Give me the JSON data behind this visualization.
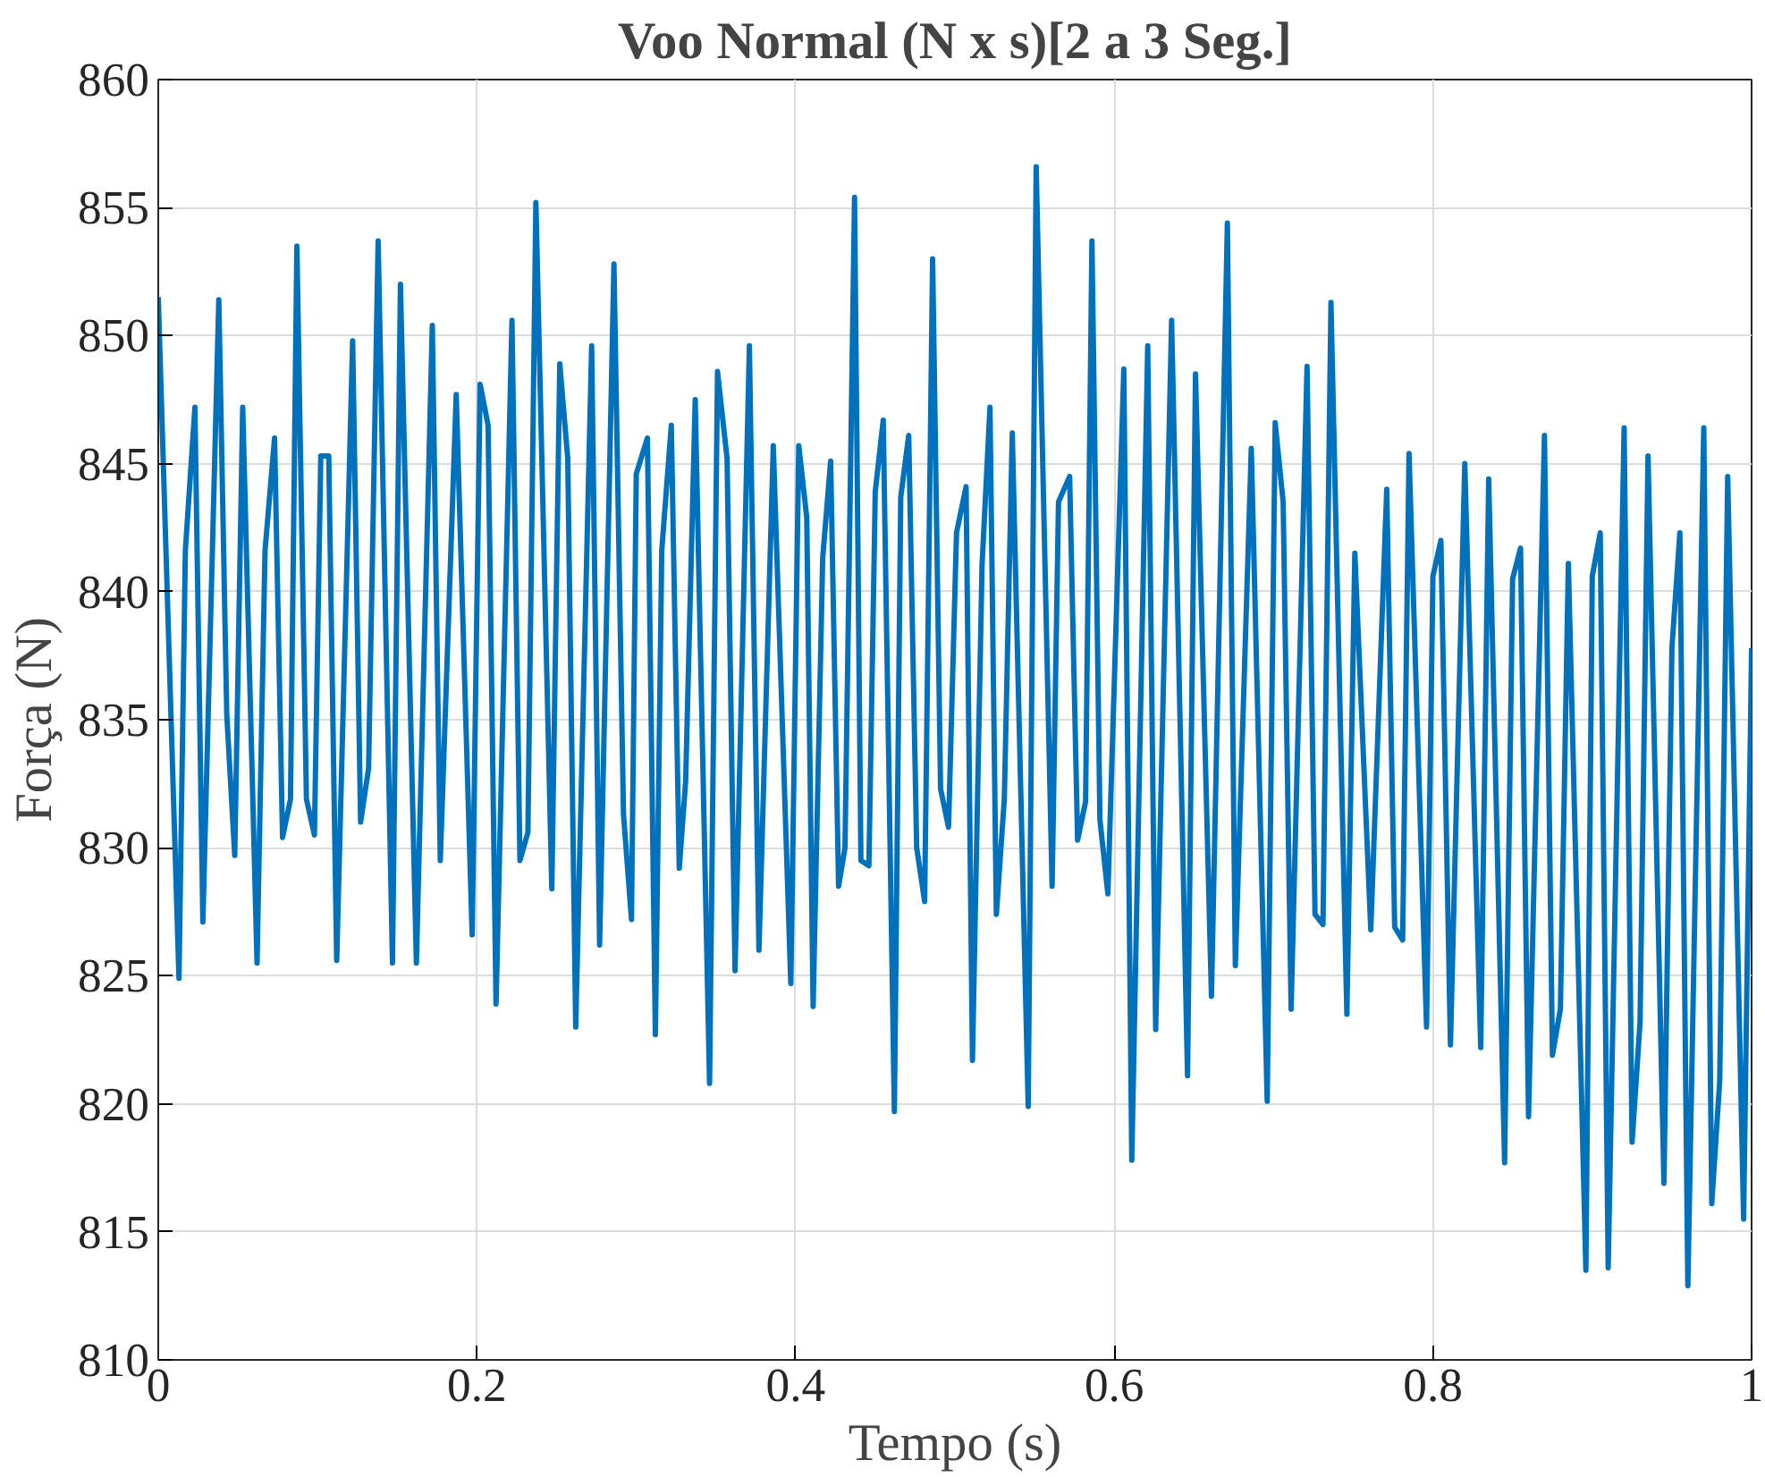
{
  "chart_data": {
    "type": "line",
    "title": "Voo Normal (N x s)[2 a 3 Seg.]",
    "xlabel": "Tempo (s)",
    "ylabel": "Força (N)",
    "xlim": [
      0,
      1
    ],
    "ylim": [
      810,
      860
    ],
    "xticks": [
      0,
      0.2,
      0.4,
      0.6,
      0.8,
      1
    ],
    "yticks": [
      810,
      815,
      820,
      825,
      830,
      835,
      840,
      845,
      850,
      855,
      860
    ],
    "grid": true,
    "line_style": "solid",
    "series": [
      {
        "color": "#0072bd",
        "x": [
          0,
          0.013,
          0.017,
          0.023,
          0.028,
          0.038,
          0.043,
          0.048,
          0.053,
          0.062,
          0.067,
          0.073,
          0.078,
          0.083,
          0.087,
          0.093,
          0.098,
          0.102,
          0.107,
          0.112,
          0.122,
          0.127,
          0.132,
          0.138,
          0.147,
          0.152,
          0.162,
          0.172,
          0.177,
          0.187,
          0.197,
          0.202,
          0.207,
          0.212,
          0.222,
          0.227,
          0.232,
          0.237,
          0.247,
          0.252,
          0.257,
          0.262,
          0.272,
          0.277,
          0.286,
          0.292,
          0.297,
          0.3,
          0.307,
          0.312,
          0.316,
          0.322,
          0.327,
          0.331,
          0.337,
          0.346,
          0.351,
          0.357,
          0.362,
          0.371,
          0.377,
          0.386,
          0.397,
          0.402,
          0.407,
          0.411,
          0.417,
          0.422,
          0.427,
          0.431,
          0.437,
          0.441,
          0.446,
          0.45,
          0.455,
          0.462,
          0.466,
          0.471,
          0.476,
          0.481,
          0.486,
          0.491,
          0.496,
          0.501,
          0.507,
          0.511,
          0.517,
          0.522,
          0.526,
          0.531,
          0.536,
          0.546,
          0.551,
          0.561,
          0.565,
          0.572,
          0.577,
          0.582,
          0.586,
          0.591,
          0.596,
          0.606,
          0.611,
          0.621,
          0.626,
          0.636,
          0.646,
          0.651,
          0.661,
          0.671,
          0.676,
          0.686,
          0.696,
          0.701,
          0.706,
          0.711,
          0.721,
          0.726,
          0.731,
          0.736,
          0.746,
          0.751,
          0.761,
          0.771,
          0.776,
          0.781,
          0.785,
          0.796,
          0.8,
          0.805,
          0.811,
          0.82,
          0.83,
          0.835,
          0.845,
          0.85,
          0.855,
          0.86,
          0.87,
          0.875,
          0.88,
          0.885,
          0.896,
          0.9,
          0.905,
          0.91,
          0.92,
          0.925,
          0.93,
          0.935,
          0.945,
          0.95,
          0.955,
          0.96,
          0.97,
          0.975,
          0.98,
          0.985,
          0.995,
          1.0
        ],
        "values": [
          851.5,
          824.9,
          841.6,
          847.2,
          827.1,
          851.4,
          835.2,
          829.7,
          847.2,
          825.5,
          841.6,
          846,
          830.4,
          831.9,
          853.5,
          831.9,
          830.5,
          845.3,
          845.3,
          825.6,
          849.8,
          831,
          833.1,
          853.7,
          825.5,
          852,
          825.5,
          850.4,
          829.5,
          847.7,
          826.6,
          848.1,
          846.5,
          823.9,
          850.6,
          829.5,
          830.6,
          855.2,
          828.4,
          848.9,
          845.2,
          823,
          849.6,
          826.2,
          852.8,
          831.3,
          827.2,
          844.6,
          846,
          822.7,
          841.6,
          846.5,
          829.2,
          832.6,
          847.5,
          820.8,
          848.6,
          845.2,
          825.2,
          849.6,
          826,
          845.7,
          824.7,
          845.7,
          842.9,
          823.8,
          841.3,
          845.1,
          828.5,
          830,
          855.4,
          829.5,
          829.3,
          843.9,
          846.7,
          819.7,
          843.7,
          846.1,
          830,
          827.9,
          853,
          832.3,
          830.8,
          842.3,
          844.1,
          821.7,
          841,
          847.2,
          827.4,
          831.9,
          846.2,
          819.9,
          856.6,
          828.5,
          843.5,
          844.5,
          830.3,
          831.8,
          853.7,
          831.1,
          828.2,
          848.7,
          817.8,
          849.6,
          822.9,
          850.6,
          821.1,
          848.5,
          824.2,
          854.4,
          825.4,
          845.6,
          820.1,
          846.6,
          843.5,
          823.7,
          848.8,
          827.4,
          827,
          851.3,
          823.5,
          841.5,
          826.8,
          844,
          826.9,
          826.4,
          845.4,
          823,
          840.6,
          842,
          822.3,
          845,
          822.2,
          844.4,
          817.7,
          840.5,
          841.7,
          819.5,
          846.1,
          821.9,
          823.7,
          841.1,
          813.5,
          840.6,
          842.3,
          813.6,
          846.4,
          818.5,
          823.2,
          845.3,
          816.9,
          837.8,
          842.3,
          812.9,
          846.4,
          816.1,
          820.9,
          844.5,
          815.5,
          837.8
        ]
      }
    ]
  }
}
